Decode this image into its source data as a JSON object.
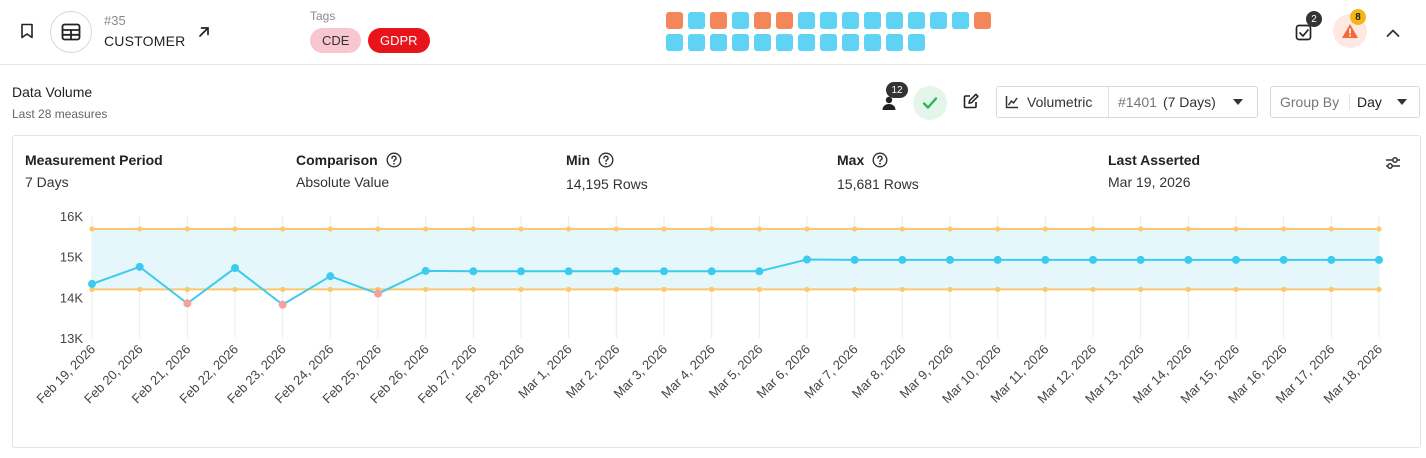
{
  "header": {
    "asset_id": "#35",
    "asset_name": "CUSTOMER",
    "tags_label": "Tags",
    "tags": [
      {
        "label": "CDE",
        "color": "#f8c6d0"
      },
      {
        "label": "GDPR",
        "color": "#e8141b"
      }
    ],
    "status_row1": [
      "orange",
      "cyan",
      "orange",
      "cyan",
      "orange",
      "orange",
      "cyan",
      "cyan",
      "cyan",
      "cyan",
      "cyan",
      "cyan",
      "cyan",
      "cyan",
      "orange"
    ],
    "status_row2": [
      "cyan",
      "cyan",
      "cyan",
      "cyan",
      "cyan",
      "cyan",
      "cyan",
      "cyan",
      "cyan",
      "cyan",
      "cyan",
      "cyan"
    ],
    "status_colors": {
      "orange": "#f4875a",
      "cyan": "#5fd3f3"
    },
    "checks_count": "2",
    "alerts_count": "8"
  },
  "section": {
    "title": "Data Volume",
    "subtitle": "Last 28 measures"
  },
  "toolbar": {
    "users_count": "12",
    "volumetric_label": "Volumetric",
    "check_id": "#1401",
    "check_window": "(7 Days)",
    "group_by_label": "Group By",
    "group_by_value": "Day"
  },
  "metrics": {
    "measurement_period_label": "Measurement Period",
    "measurement_period_value": "7 Days",
    "comparison_label": "Comparison",
    "comparison_value": "Absolute Value",
    "min_label": "Min",
    "min_value": "14,195 Rows",
    "max_label": "Max",
    "max_value": "15,681 Rows",
    "last_asserted_label": "Last Asserted",
    "last_asserted_value": "Mar 19, 2026"
  },
  "chart_data": {
    "type": "line",
    "x": [
      "Feb 19, 2026",
      "Feb 20, 2026",
      "Feb 21, 2026",
      "Feb 22, 2026",
      "Feb 23, 2026",
      "Feb 24, 2026",
      "Feb 25, 2026",
      "Feb 26, 2026",
      "Feb 27, 2026",
      "Feb 28, 2026",
      "Mar 1, 2026",
      "Mar 2, 2026",
      "Mar 3, 2026",
      "Mar 4, 2026",
      "Mar 5, 2026",
      "Mar 6, 2026",
      "Mar 7, 2026",
      "Mar 8, 2026",
      "Mar 9, 2026",
      "Mar 10, 2026",
      "Mar 11, 2026",
      "Mar 12, 2026",
      "Mar 13, 2026",
      "Mar 14, 2026",
      "Mar 15, 2026",
      "Mar 16, 2026",
      "Mar 17, 2026",
      "Mar 18, 2026"
    ],
    "series": [
      {
        "values": [
          14330,
          14750,
          13850,
          14720,
          13820,
          14520,
          14090,
          14650,
          14640,
          14640,
          14640,
          14640,
          14640,
          14640,
          14640,
          14930,
          14920,
          14920,
          14920,
          14920,
          14920,
          14920,
          14920,
          14920,
          14920,
          14920,
          14920,
          14920
        ]
      }
    ],
    "anomalies": [
      2,
      4,
      6
    ],
    "threshold_min": 14195,
    "threshold_max": 15681,
    "yticks": [
      "13K",
      "14K",
      "15K",
      "16K"
    ],
    "ylim": [
      13000,
      16000
    ],
    "grid": "vertical",
    "colors": {
      "line": "#3ccbee",
      "band": "#e6f7fc",
      "threshold": "#f9c96b",
      "anomaly": "#f4a0a0"
    }
  }
}
